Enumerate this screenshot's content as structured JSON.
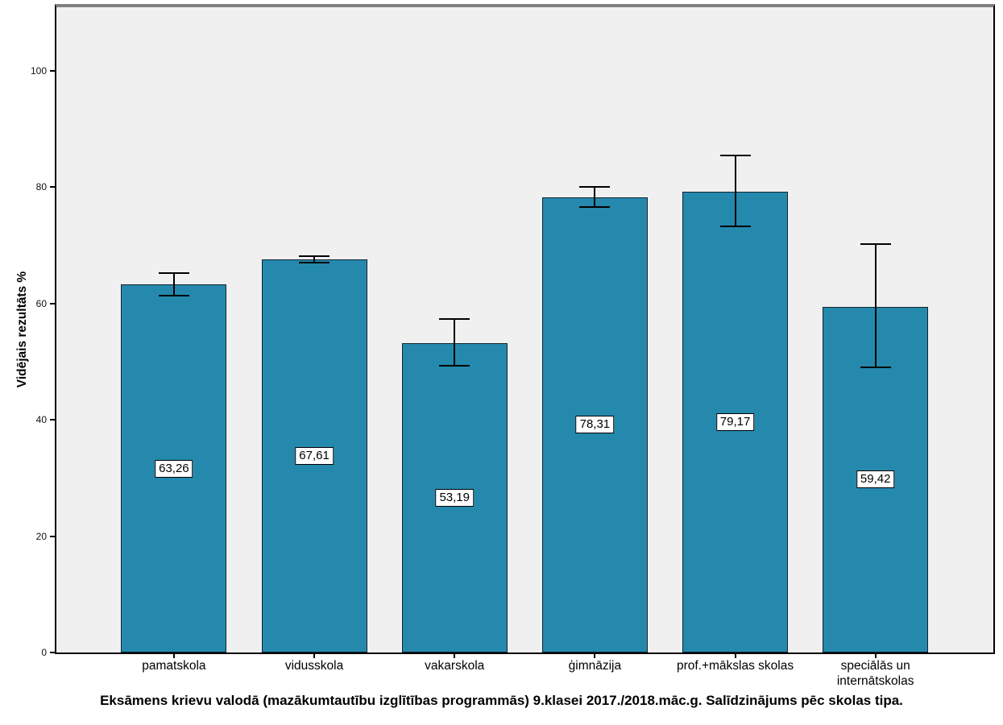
{
  "chart_data": {
    "type": "bar",
    "title": "Eksāmens krievu valodā (mazākumtautību izglītības programmās) 9.klasei 2017./2018.māc.g. Salīdzinājums pēc skolas tipa.",
    "ylabel": "Vidējais rezultāts %",
    "xlabel": "",
    "categories": [
      "pamatskola",
      "vidusskola",
      "vakarskola",
      "ģimnāzija",
      "prof.+mākslas skolas",
      "speciālās un internātskolas"
    ],
    "values": [
      63.26,
      67.61,
      53.19,
      78.31,
      79.17,
      59.42
    ],
    "value_labels": [
      "63,26",
      "67,61",
      "53,19",
      "78,31",
      "79,17",
      "59,42"
    ],
    "error_upper": [
      65.3,
      68.2,
      57.4,
      80.0,
      85.4,
      70.2
    ],
    "error_lower": [
      61.3,
      67.1,
      49.3,
      76.6,
      73.2,
      49.0
    ],
    "yticks": [
      0,
      20,
      40,
      60,
      80,
      100
    ],
    "ytick_labels": [
      "0",
      "20",
      "40",
      "60",
      "80",
      "100"
    ],
    "ylim": [
      0,
      111
    ],
    "grid": false,
    "legend_position": "none",
    "colors": {
      "bar_fill": "#2589AD",
      "bar_border": "#14232b",
      "plot_bg": "#F0F0F0",
      "frame_top": "#808080",
      "axis": "#000000",
      "error_bar": "#000000",
      "value_label_bg": "#FFFFFF"
    }
  }
}
